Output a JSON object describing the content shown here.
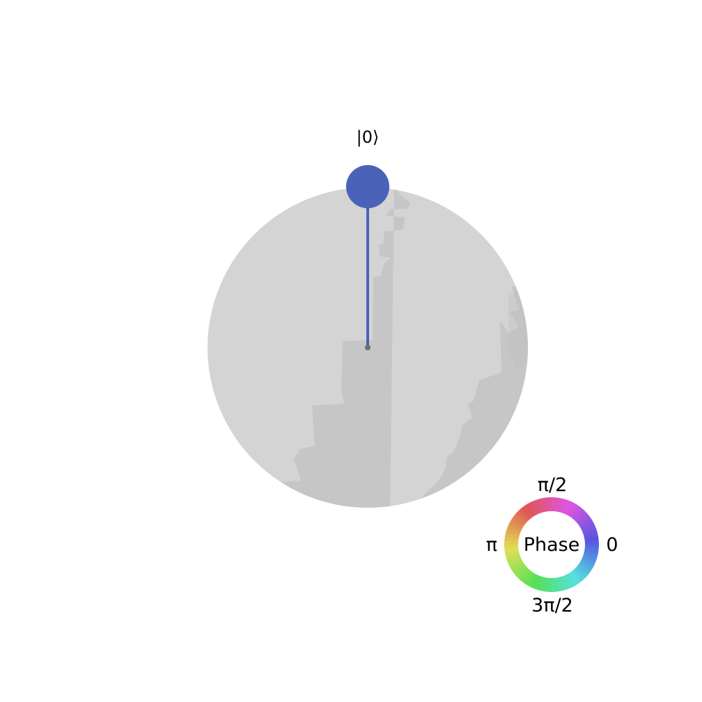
{
  "state": {
    "label": "|0⟩",
    "color": "#4a63b8",
    "basis_probability": 1.0,
    "phase": 0
  },
  "sphere": {
    "color_light": "#d4d4d4",
    "color_shade": "#c6c6c6",
    "center_dot_color": "#707070"
  },
  "phase_legend": {
    "title": "Phase",
    "ticks": {
      "top": "π/2",
      "left": "π",
      "right": "0",
      "bottom": "3π/2"
    }
  }
}
